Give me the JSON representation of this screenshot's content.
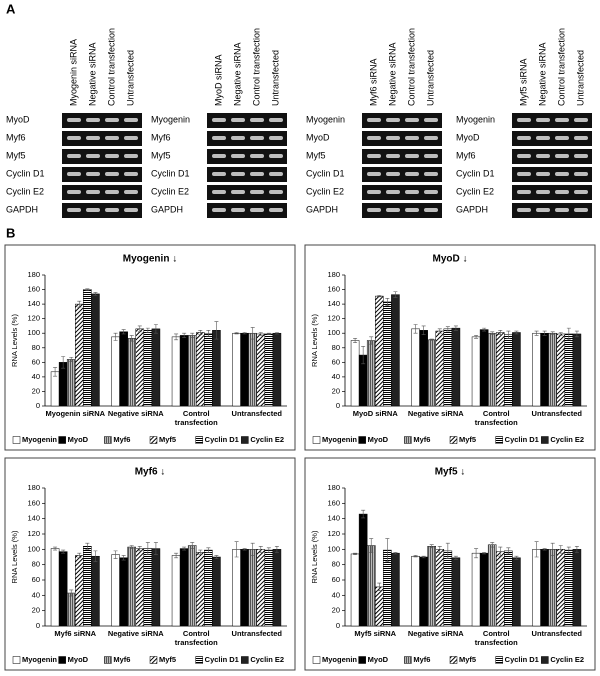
{
  "panel_a": {
    "label": "A",
    "blocks": [
      {
        "columns": [
          "Myogenin siRNA",
          "Negative siRNA",
          "Control transfection",
          "Untransfected"
        ],
        "rows": [
          "MyoD",
          "Myf6",
          "Myf5",
          "Cyclin D1",
          "Cyclin E2",
          "GAPDH"
        ]
      },
      {
        "columns": [
          "MyoD siRNA",
          "Negative siRNA",
          "Control transfection",
          "Untransfected"
        ],
        "rows": [
          "Myogenin",
          "Myf6",
          "Myf5",
          "Cyclin D1",
          "Cyclin E2",
          "GAPDH"
        ]
      },
      {
        "columns": [
          "Myf6 siRNA",
          "Negative siRNA",
          "Control transfection",
          "Untransfected"
        ],
        "rows": [
          "Myogenin",
          "MyoD",
          "Myf5",
          "Cyclin D1",
          "Cyclin E2",
          "GAPDH"
        ]
      },
      {
        "columns": [
          "Myf5 siRNA",
          "Negative siRNA",
          "Control transfection",
          "Untransfected"
        ],
        "rows": [
          "Myogenin",
          "MyoD",
          "Myf6",
          "Cyclin D1",
          "Cyclin E2",
          "GAPDH"
        ]
      }
    ]
  },
  "panel_b": {
    "label": "B"
  },
  "chart_data": [
    {
      "type": "bar",
      "title": "Myogenin ↓",
      "ylabel": "RNA Levels (%)",
      "ylim": [
        0,
        180
      ],
      "yticks": [
        0,
        20,
        40,
        60,
        80,
        100,
        120,
        140,
        160,
        180
      ],
      "legend": "bottom",
      "categories": [
        "Myogenin siRNA",
        "Negative siRNA",
        "Control transfection",
        "Untransfected"
      ],
      "series": [
        {
          "name": "Myogenin",
          "color": "#ffffff",
          "pattern": "none",
          "values": [
            47,
            95,
            95,
            100
          ],
          "errors": [
            6,
            5,
            4,
            1
          ]
        },
        {
          "name": "MyoD",
          "color": "#000000",
          "pattern": "none",
          "values": [
            60,
            102,
            97,
            100
          ],
          "errors": [
            8,
            3,
            3,
            1
          ]
        },
        {
          "name": "Myf6",
          "color": "#bbbbbb",
          "pattern": "vertical",
          "values": [
            64,
            93,
            97,
            100
          ],
          "errors": [
            3,
            4,
            3,
            8
          ]
        },
        {
          "name": "Myf5",
          "color": "#ffffff",
          "pattern": "diagonal",
          "values": [
            140,
            106,
            101,
            99
          ],
          "errors": [
            4,
            4,
            3,
            2
          ]
        },
        {
          "name": "Cyclin D1",
          "color": "#ffffff",
          "pattern": "horizontal",
          "values": [
            160,
            104,
            100,
            99
          ],
          "errors": [
            1,
            3,
            4,
            1
          ]
        },
        {
          "name": "Cyclin E2",
          "color": "#222222",
          "pattern": "none",
          "values": [
            154,
            106,
            104,
            100
          ],
          "errors": [
            2,
            6,
            12,
            1
          ]
        }
      ]
    },
    {
      "type": "bar",
      "title": "MyoD ↓",
      "ylabel": "RNA Levels (%)",
      "ylim": [
        0,
        180
      ],
      "yticks": [
        0,
        20,
        40,
        60,
        80,
        100,
        120,
        140,
        160,
        180
      ],
      "legend": "bottom",
      "categories": [
        "MyoD siRNA",
        "Negative siRNA",
        "Control transfection",
        "Untransfected"
      ],
      "series": [
        {
          "name": "Myogenin",
          "color": "#ffffff",
          "pattern": "none",
          "values": [
            90,
            106,
            95,
            100
          ],
          "errors": [
            3,
            6,
            2,
            3
          ]
        },
        {
          "name": "MyoD",
          "color": "#000000",
          "pattern": "none",
          "values": [
            70,
            104,
            105,
            100
          ],
          "errors": [
            12,
            6,
            2,
            3
          ]
        },
        {
          "name": "Myf6",
          "color": "#bbbbbb",
          "pattern": "vertical",
          "values": [
            90,
            91,
            100,
            100
          ],
          "errors": [
            5,
            1,
            2,
            2
          ]
        },
        {
          "name": "Myf5",
          "color": "#ffffff",
          "pattern": "diagonal",
          "values": [
            151,
            103,
            101,
            99
          ],
          "errors": [
            1,
            3,
            3,
            2
          ]
        },
        {
          "name": "Cyclin D1",
          "color": "#ffffff",
          "pattern": "horizontal",
          "values": [
            143,
            106,
            98,
            99
          ],
          "errors": [
            5,
            3,
            5,
            8
          ]
        },
        {
          "name": "Cyclin E2",
          "color": "#222222",
          "pattern": "none",
          "values": [
            153,
            107,
            101,
            99
          ],
          "errors": [
            4,
            3,
            2,
            4
          ]
        }
      ]
    },
    {
      "type": "bar",
      "title": "Myf6 ↓",
      "ylabel": "RNA Levels (%)",
      "ylim": [
        0,
        180
      ],
      "yticks": [
        0,
        20,
        40,
        60,
        80,
        100,
        120,
        140,
        160,
        180
      ],
      "legend": "bottom",
      "categories": [
        "Myf6 siRNA",
        "Negative siRNA",
        "Control transfection",
        "Untransfected"
      ],
      "series": [
        {
          "name": "Myogenin",
          "color": "#ffffff",
          "pattern": "none",
          "values": [
            101,
            93,
            92,
            100
          ],
          "errors": [
            2,
            5,
            3,
            10
          ]
        },
        {
          "name": "MyoD",
          "color": "#000000",
          "pattern": "none",
          "values": [
            97,
            89,
            101,
            100
          ],
          "errors": [
            2,
            3,
            2,
            1
          ]
        },
        {
          "name": "Myf6",
          "color": "#bbbbbb",
          "pattern": "vertical",
          "values": [
            43,
            103,
            105,
            100
          ],
          "errors": [
            4,
            2,
            4,
            8
          ]
        },
        {
          "name": "Myf5",
          "color": "#ffffff",
          "pattern": "diagonal",
          "values": [
            92,
            101,
            96,
            100
          ],
          "errors": [
            3,
            3,
            3,
            4
          ]
        },
        {
          "name": "Cyclin D1",
          "color": "#ffffff",
          "pattern": "horizontal",
          "values": [
            104,
            101,
            99,
            99
          ],
          "errors": [
            4,
            8,
            3,
            3
          ]
        },
        {
          "name": "Cyclin E2",
          "color": "#222222",
          "pattern": "none",
          "values": [
            91,
            101,
            90,
            100
          ],
          "errors": [
            7,
            8,
            2,
            4
          ]
        }
      ]
    },
    {
      "type": "bar",
      "title": "Myf5 ↓",
      "ylabel": "RNA Levels (%)",
      "ylim": [
        0,
        180
      ],
      "yticks": [
        0,
        20,
        40,
        60,
        80,
        100,
        120,
        140,
        160,
        180
      ],
      "legend": "bottom",
      "categories": [
        "Myf5 siRNA",
        "Negative siRNA",
        "Control transfection",
        "Untransfected"
      ],
      "series": [
        {
          "name": "Myogenin",
          "color": "#ffffff",
          "pattern": "none",
          "values": [
            94,
            91,
            95,
            100
          ],
          "errors": [
            1,
            1,
            6,
            10
          ]
        },
        {
          "name": "MyoD",
          "color": "#000000",
          "pattern": "none",
          "values": [
            146,
            90,
            95,
            100
          ],
          "errors": [
            5,
            1,
            1,
            1
          ]
        },
        {
          "name": "Myf6",
          "color": "#bbbbbb",
          "pattern": "vertical",
          "values": [
            105,
            104,
            106,
            100
          ],
          "errors": [
            9,
            2,
            3,
            8
          ]
        },
        {
          "name": "Myf5",
          "color": "#ffffff",
          "pattern": "diagonal",
          "values": [
            51,
            100,
            97,
            100
          ],
          "errors": [
            5,
            4,
            6,
            5
          ]
        },
        {
          "name": "Cyclin D1",
          "color": "#ffffff",
          "pattern": "horizontal",
          "values": [
            99,
            98,
            98,
            99
          ],
          "errors": [
            15,
            10,
            4,
            4
          ]
        },
        {
          "name": "Cyclin E2",
          "color": "#222222",
          "pattern": "none",
          "values": [
            95,
            89,
            89,
            100
          ],
          "errors": [
            1,
            2,
            2,
            4
          ]
        }
      ]
    }
  ]
}
